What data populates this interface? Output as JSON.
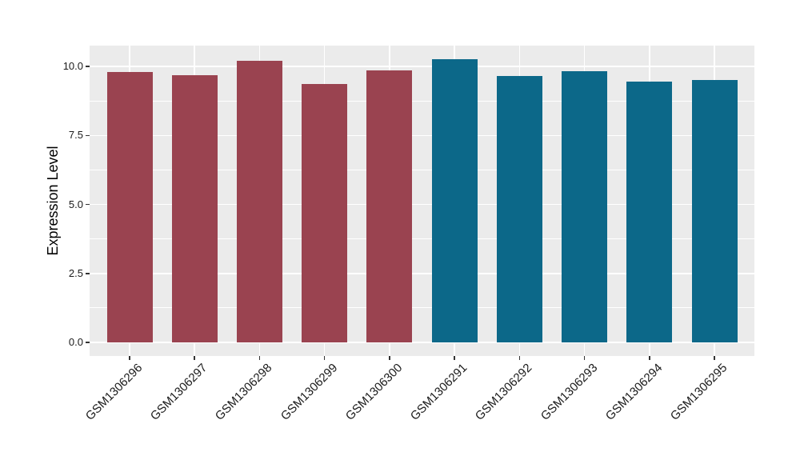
{
  "chart_data": {
    "type": "bar",
    "title": "",
    "xlabel": "",
    "ylabel": "Expression Level",
    "categories": [
      "GSM1306296",
      "GSM1306297",
      "GSM1306298",
      "GSM1306299",
      "GSM1306300",
      "GSM1306291",
      "GSM1306292",
      "GSM1306293",
      "GSM1306294",
      "GSM1306295"
    ],
    "values": [
      9.79,
      9.67,
      10.21,
      9.37,
      9.86,
      10.27,
      9.64,
      9.83,
      9.44,
      9.5
    ],
    "bar_colors": [
      "#9a4350",
      "#9a4350",
      "#9a4350",
      "#9a4350",
      "#9a4350",
      "#0c6889",
      "#0c6889",
      "#0c6889",
      "#0c6889",
      "#0c6889"
    ],
    "group_palette": {
      "maroon": "#9a4350",
      "teal": "#0c6889"
    },
    "yticks": [
      0.0,
      2.5,
      5.0,
      7.5,
      10.0
    ],
    "ytick_labels": [
      "0.0",
      "2.5",
      "5.0",
      "7.5",
      "10.0"
    ],
    "yticks_minor": [
      1.25,
      3.75,
      6.25,
      8.75
    ],
    "ylim": [
      -0.51,
      10.77
    ],
    "grid": true,
    "legend_position": "none",
    "panel_background": "#ebebeb",
    "gridline_color": "#ffffff",
    "tick_mark_color": "#333333",
    "tick_label_color": "#1a1a1a"
  }
}
